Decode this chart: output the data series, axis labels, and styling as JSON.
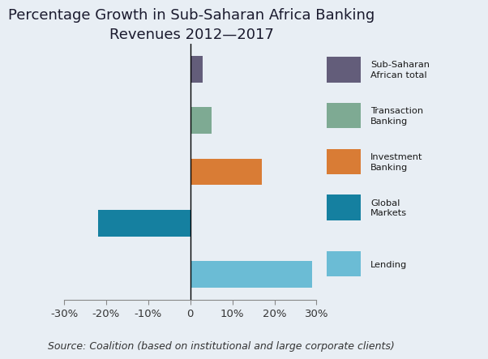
{
  "title": "Percentage Growth in Sub-Saharan Africa Banking\nRevenues 2012—2017",
  "categories": [
    "Sub-Saharan\nAfrican total",
    "Transaction\nBanking",
    "Investment\nBanking",
    "Global\nMarkets",
    "Lending"
  ],
  "values": [
    3,
    5,
    17,
    -22,
    29
  ],
  "colors": [
    "#635d7a",
    "#7eaa93",
    "#d97c35",
    "#1580a0",
    "#6bbcd5"
  ],
  "legend_labels": [
    "Sub-Saharan\nAfrican total",
    "Transaction\nBanking",
    "Investment\nBanking",
    "Global\nMarkets",
    "Lending"
  ],
  "xlim": [
    -30,
    30
  ],
  "xticks": [
    -30,
    -20,
    -10,
    0,
    10,
    20,
    30
  ],
  "xtick_labels": [
    "-30%",
    "-20%",
    "-10%",
    "0",
    "10%",
    "20%",
    "30%"
  ],
  "background_color": "#e8eef4",
  "source_text": "Source: Coalition (based on institutional and large corporate clients)",
  "title_fontsize": 13,
  "tick_fontsize": 9.5,
  "source_fontsize": 9,
  "bar_height": 0.52
}
